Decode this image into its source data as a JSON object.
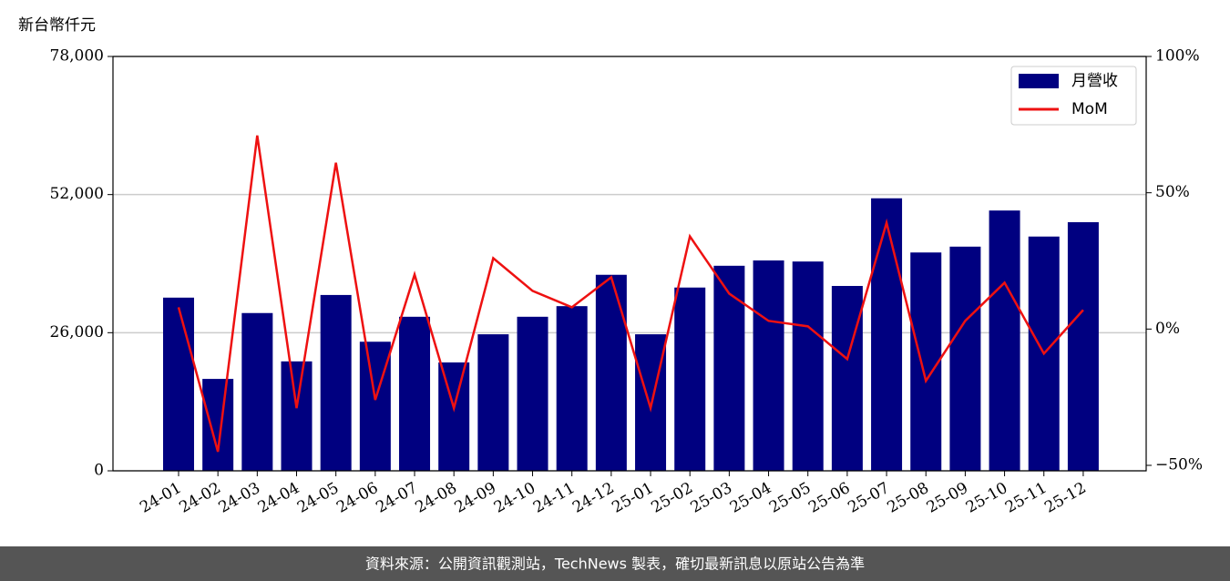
{
  "chart_data": {
    "type": "bar-line",
    "y_axis_label": "新台幣仟元",
    "categories": [
      "24-01",
      "24-02",
      "24-03",
      "24-04",
      "24-05",
      "24-06",
      "24-07",
      "24-08",
      "24-09",
      "24-10",
      "24-11",
      "24-12",
      "25-01",
      "25-02",
      "25-03",
      "25-04",
      "25-05",
      "25-06",
      "25-07",
      "25-08",
      "25-09",
      "25-10",
      "25-11",
      "25-12"
    ],
    "series": [
      {
        "name": "月營收",
        "type": "bar",
        "color": "#000080",
        "values": [
          32600,
          17300,
          29700,
          20600,
          33100,
          24300,
          29000,
          20400,
          25700,
          29000,
          31000,
          36900,
          25700,
          34500,
          38600,
          39600,
          39400,
          34800,
          51300,
          41100,
          42200,
          49000,
          44100,
          46800
        ]
      },
      {
        "name": "MoM",
        "type": "line",
        "axis": "y2",
        "color": "#ee1111",
        "values": [
          8,
          -45,
          71,
          -29,
          61,
          -26,
          20,
          -29,
          26,
          14,
          8,
          19,
          -29,
          34,
          13,
          3,
          1,
          -11,
          39,
          -19,
          3,
          17,
          -9,
          7
        ]
      }
    ],
    "ylim": [
      0,
      78000
    ],
    "yticks": [
      0,
      {
        "value": 26000,
        "label": "26,000"
      },
      {
        "value": 52000,
        "label": "52,000"
      },
      {
        "value": 78000,
        "label": "78,000"
      }
    ],
    "y2lim": [
      -52,
      100
    ],
    "y2ticks": [
      {
        "value": -50,
        "label": "−50%"
      },
      {
        "value": 0,
        "label": "0%"
      },
      {
        "value": 50,
        "label": "50%"
      },
      {
        "value": 100,
        "label": "100%"
      }
    ],
    "grid": true,
    "legend": "upper right",
    "footer": "資料來源：公開資訊觀測站，TechNews 製表，確切最新訊息以原站公告為準"
  }
}
